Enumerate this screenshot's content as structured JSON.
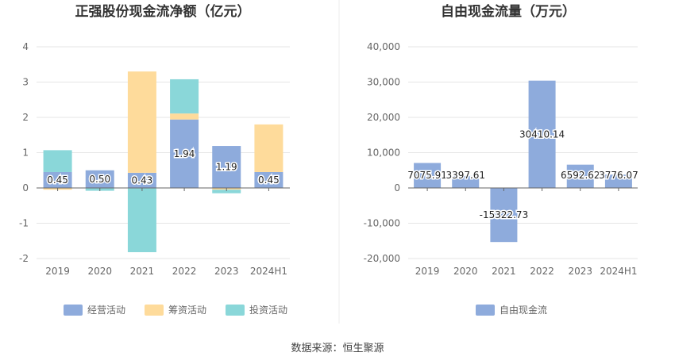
{
  "chart_data": [
    {
      "type": "bar",
      "stacked": true,
      "title": "正强股份现金流净额（亿元）",
      "categories": [
        "2019",
        "2020",
        "2021",
        "2022",
        "2023",
        "2024H1"
      ],
      "ylim": [
        -2,
        4
      ],
      "yticks": [
        "4",
        "3",
        "2",
        "1",
        "0",
        "-1",
        "-2"
      ],
      "grid": true,
      "legend_position": "bottom",
      "series": [
        {
          "name": "经营活动",
          "color": "#8eabdc",
          "values": [
            0.45,
            0.5,
            0.43,
            1.94,
            1.19,
            0.45
          ],
          "labels": [
            "0.45",
            "0.50",
            "0.43",
            "1.94",
            "1.19",
            "0.45"
          ]
        },
        {
          "name": "筹资活动",
          "color": "#fedb9b",
          "values": [
            -0.05,
            0.0,
            2.87,
            0.17,
            -0.05,
            1.35
          ]
        },
        {
          "name": "投资活动",
          "color": "#8ad7d9",
          "values": [
            0.62,
            -0.08,
            -1.82,
            0.97,
            -0.1,
            0.0
          ]
        }
      ]
    },
    {
      "type": "bar",
      "title": "自由现金流量（万元）",
      "categories": [
        "2019",
        "2020",
        "2021",
        "2022",
        "2023",
        "2024H1"
      ],
      "ylim": [
        -20000,
        40000
      ],
      "yticks": [
        "40,000",
        "30,000",
        "20,000",
        "10,000",
        "0",
        "-10,000",
        "-20,000"
      ],
      "grid": true,
      "legend_position": "bottom",
      "series": [
        {
          "name": "自由现金流",
          "color": "#8eabdc",
          "values": [
            7075.91,
            3397.61,
            -15322.73,
            30410.14,
            6592.62,
            3776.07
          ],
          "labels": [
            "7075.91",
            "3397.61",
            "-15322.73",
            "30410.14",
            "6592.62",
            "3776.07"
          ]
        }
      ]
    }
  ],
  "footer": {
    "source": "数据来源：恒生聚源"
  },
  "colors": {
    "axis": "#666666",
    "grid": "#e6e6e6",
    "divider": "#eeeeee"
  }
}
